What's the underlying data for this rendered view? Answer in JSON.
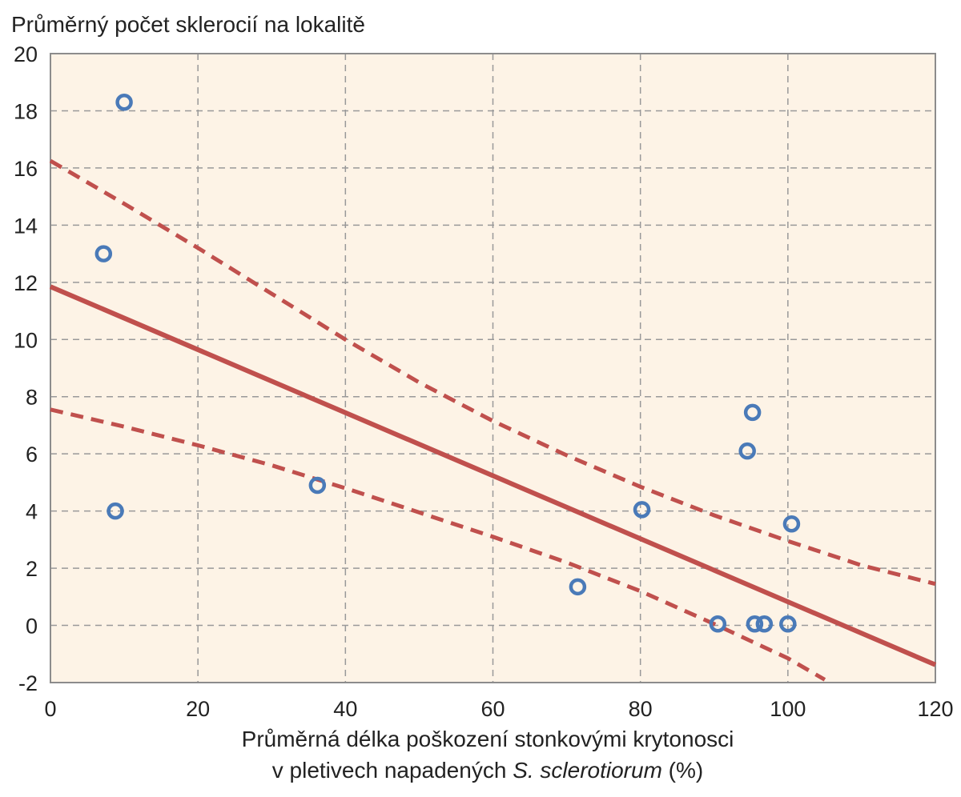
{
  "chart_data": {
    "type": "scatter",
    "ylabel": "Průměrný počet sklerocií na lokalitě",
    "xlabel_line1": "Průměrná délka poškození stonkovými krytonosci",
    "xlabel_line2_prefix": "v pletivech napadených ",
    "xlabel_line2_species": "S. sclerotiorum",
    "xlabel_line2_suffix": " (%)",
    "xlim": [
      0,
      120
    ],
    "ylim": [
      -2,
      20
    ],
    "x_ticks": [
      0,
      20,
      40,
      60,
      80,
      100,
      120
    ],
    "y_ticks": [
      -2,
      0,
      2,
      4,
      6,
      8,
      10,
      12,
      14,
      16,
      18,
      20
    ],
    "grid": true,
    "colors": {
      "background": "#fdf3e6",
      "points": "#4a7ab8",
      "lines": "#c0504d",
      "grid": "#999999",
      "axis": "#8c8c8c"
    },
    "points": [
      {
        "x": 10,
        "y": 18.3
      },
      {
        "x": 7.2,
        "y": 13.0
      },
      {
        "x": 8.8,
        "y": 4.0
      },
      {
        "x": 36.2,
        "y": 4.9
      },
      {
        "x": 71.5,
        "y": 1.35
      },
      {
        "x": 80.2,
        "y": 4.05
      },
      {
        "x": 90.5,
        "y": 0.05
      },
      {
        "x": 95.5,
        "y": 0.05
      },
      {
        "x": 96.8,
        "y": 0.05
      },
      {
        "x": 100,
        "y": 0.05
      },
      {
        "x": 94.5,
        "y": 6.1
      },
      {
        "x": 95.2,
        "y": 7.45
      },
      {
        "x": 100.5,
        "y": 3.55
      }
    ],
    "regression_line": [
      {
        "x": 0,
        "y": 11.85
      },
      {
        "x": 120,
        "y": -1.38
      }
    ],
    "upper_confidence_band": [
      {
        "x": 0,
        "y": 16.25
      },
      {
        "x": 10,
        "y": 14.75
      },
      {
        "x": 20,
        "y": 13.2
      },
      {
        "x": 30,
        "y": 11.6
      },
      {
        "x": 40,
        "y": 10.0
      },
      {
        "x": 50,
        "y": 8.5
      },
      {
        "x": 60,
        "y": 7.15
      },
      {
        "x": 70,
        "y": 5.95
      },
      {
        "x": 80,
        "y": 4.85
      },
      {
        "x": 90,
        "y": 3.85
      },
      {
        "x": 100,
        "y": 2.95
      },
      {
        "x": 110,
        "y": 2.1
      },
      {
        "x": 120,
        "y": 1.45
      }
    ],
    "lower_confidence_band": [
      {
        "x": 0,
        "y": 7.55
      },
      {
        "x": 10,
        "y": 6.95
      },
      {
        "x": 20,
        "y": 6.3
      },
      {
        "x": 30,
        "y": 5.6
      },
      {
        "x": 40,
        "y": 4.8
      },
      {
        "x": 50,
        "y": 3.95
      },
      {
        "x": 60,
        "y": 3.1
      },
      {
        "x": 70,
        "y": 2.2
      },
      {
        "x": 80,
        "y": 1.2
      },
      {
        "x": 90,
        "y": 0.05
      },
      {
        "x": 100,
        "y": -1.15
      },
      {
        "x": 105,
        "y": -1.9
      }
    ]
  }
}
